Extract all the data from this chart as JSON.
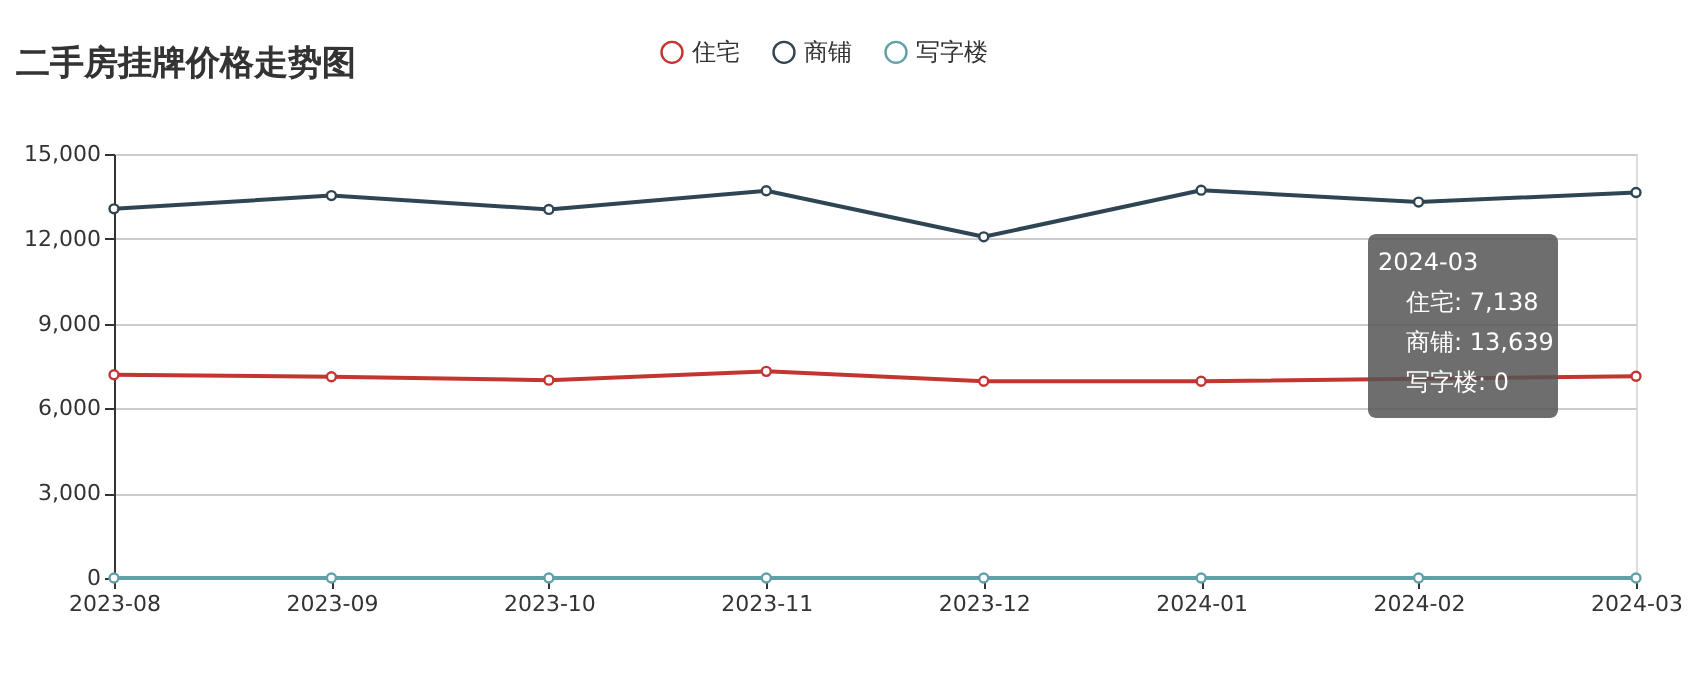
{
  "chart_data": {
    "type": "line",
    "title": "二手房挂牌价格走势图",
    "categories": [
      "2023-08",
      "2023-09",
      "2023-10",
      "2023-11",
      "2023-12",
      "2024-01",
      "2024-02",
      "2024-03"
    ],
    "series": [
      {
        "name": "住宅",
        "color": "#c23531",
        "values": [
          7190,
          7120,
          7000,
          7310,
          6960,
          6960,
          null,
          7138
        ]
      },
      {
        "name": "商铺",
        "color": "#2f4554",
        "values": [
          13060,
          13530,
          13040,
          13700,
          12070,
          13720,
          13300,
          13639
        ]
      },
      {
        "name": "写字楼",
        "color": "#61a0a8",
        "values": [
          0,
          0,
          0,
          0,
          0,
          0,
          0,
          0
        ]
      }
    ],
    "ylim": [
      0,
      15000
    ],
    "yticks": [
      0,
      {
        "value": 3000,
        "label": "3,000"
      },
      {
        "value": 6000,
        "label": "6,000"
      },
      {
        "value": 9000,
        "label": "9,000"
      },
      {
        "value": 12000,
        "label": "12,000"
      },
      {
        "value": 15000,
        "label": "15,000"
      }
    ],
    "grid": "y",
    "legend": "top",
    "marker": "circle",
    "line_style": "solid",
    "annotations": [
      "2024-03",
      "住宅: 7,138",
      "商铺: 13,639",
      "写字楼: 0"
    ]
  }
}
